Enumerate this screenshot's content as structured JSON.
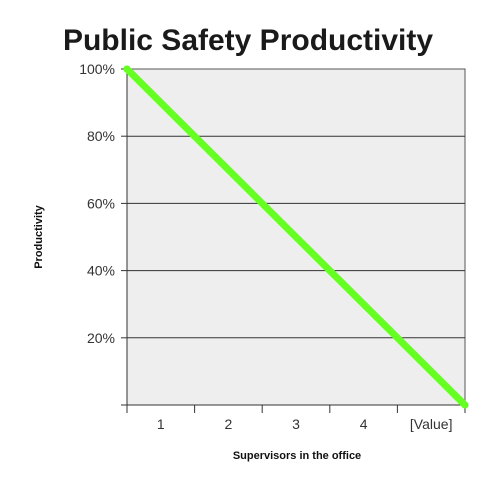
{
  "chart_data": {
    "type": "line",
    "title": "Public Safety Productivity",
    "xlabel": "Supervisors in the office",
    "ylabel": "Productivity",
    "categories": [
      "1",
      "2",
      "3",
      "4",
      "[Value]"
    ],
    "x_range": [
      0,
      5
    ],
    "ylim": [
      0,
      100
    ],
    "y_ticks": [
      0,
      20,
      40,
      60,
      80,
      100
    ],
    "y_tick_labels": [
      "",
      "20%",
      "40%",
      "60%",
      "80%",
      "100%"
    ],
    "grid": true,
    "series": [
      {
        "x": [
          0,
          5
        ],
        "values": [
          100,
          0
        ],
        "color": "#66ff22"
      }
    ],
    "colors": {
      "plot_background": "#eeeeee",
      "gridline": "#333333",
      "line": "#66ff22"
    }
  }
}
